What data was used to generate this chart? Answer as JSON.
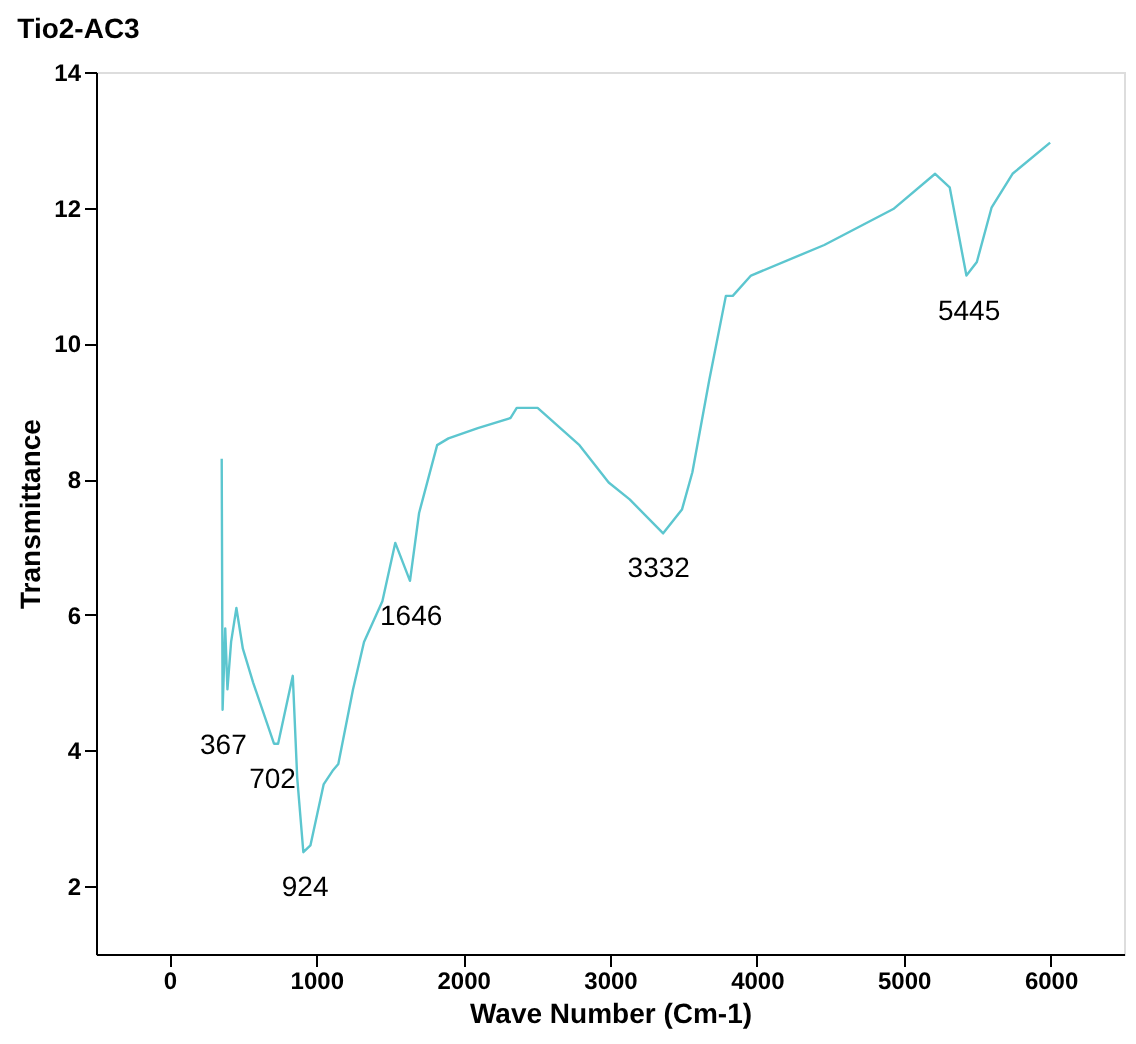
{
  "chart_data": {
    "type": "line",
    "title": "Tio2-AC3",
    "xlabel": "Wave Number (Cm-1)",
    "ylabel": "Transmittance",
    "xlim": [
      -500,
      6500
    ],
    "xticks": [
      0,
      1000,
      2000,
      3000,
      4000,
      5000,
      6000
    ],
    "ylim": [
      1,
      14
    ],
    "yticks": [
      2,
      4,
      6,
      8,
      10,
      12,
      14
    ],
    "grid": false,
    "marker": "none",
    "line_style": "solid",
    "series": [
      {
        "color": "#5cc6cf",
        "x": [
          356,
          362,
          380,
          395,
          420,
          456,
          500,
          570,
          712,
          740,
          840,
          870,
          912,
          960,
          1050,
          1111,
          1150,
          1250,
          1325,
          1450,
          1538,
          1638,
          1700,
          1823,
          1900,
          2100,
          2322,
          2365,
          2507,
          2792,
          2991,
          3134,
          3362,
          3490,
          3561,
          3675,
          3789,
          3836,
          3960,
          4459,
          4929,
          5214,
          5313,
          5427,
          5498,
          5598,
          5741,
          5997
        ],
        "values": [
          8.3,
          4.6,
          5.8,
          4.9,
          5.6,
          6.1,
          5.5,
          5.0,
          4.1,
          4.1,
          5.1,
          3.6,
          2.5,
          2.6,
          3.5,
          3.7,
          3.8,
          4.9,
          5.6,
          6.2,
          7.06,
          6.5,
          7.5,
          8.5,
          8.6,
          8.75,
          8.9,
          9.05,
          9.05,
          8.5,
          7.95,
          7.7,
          7.2,
          7.55,
          8.1,
          9.45,
          10.7,
          10.7,
          11.0,
          11.45,
          11.98,
          12.5,
          12.3,
          11.0,
          11.2,
          12.0,
          12.5,
          12.96
        ]
      }
    ],
    "annotations": [
      {
        "text": "367",
        "x": 367,
        "y": 4.6
      },
      {
        "text": "702",
        "x": 702,
        "y": 4.1
      },
      {
        "text": "924",
        "x": 924,
        "y": 2.5
      },
      {
        "text": "1646",
        "x": 1646,
        "y": 6.5
      },
      {
        "text": "3332",
        "x": 3332,
        "y": 7.2
      },
      {
        "text": "5445",
        "x": 5445,
        "y": 11.0
      }
    ]
  }
}
